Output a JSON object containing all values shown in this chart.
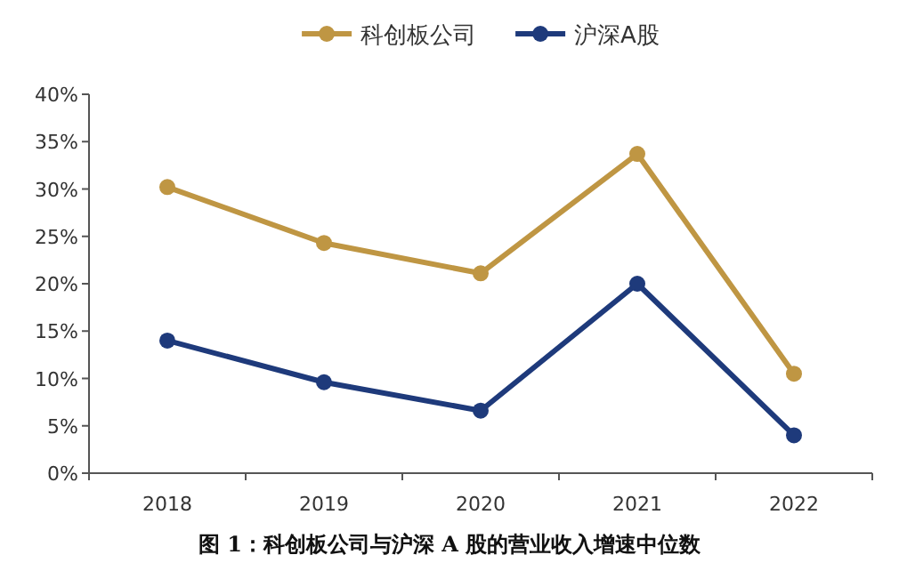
{
  "chart_data": {
    "type": "line",
    "title": "图 1：科创板公司与沪深 A 股的营业收入增速中位数",
    "categories": [
      "2018",
      "2019",
      "2020",
      "2021",
      "2022"
    ],
    "series": [
      {
        "name": "科创板公司",
        "color": "#bf9643",
        "values": [
          30.2,
          24.3,
          21.1,
          33.7,
          10.5
        ]
      },
      {
        "name": "沪深A股",
        "color": "#1e3a7b",
        "values": [
          14.0,
          9.6,
          6.6,
          20.0,
          4.0
        ]
      }
    ],
    "ylim": [
      0,
      40
    ],
    "yticks": [
      {
        "value": 0,
        "label": "0%"
      },
      {
        "value": 5,
        "label": "5%"
      },
      {
        "value": 10,
        "label": "10%"
      },
      {
        "value": 15,
        "label": "15%"
      },
      {
        "value": 20,
        "label": "20%"
      },
      {
        "value": 25,
        "label": "25%"
      },
      {
        "value": 30,
        "label": "30%"
      },
      {
        "value": 35,
        "label": "35%"
      },
      {
        "value": 40,
        "label": "40%"
      }
    ],
    "legend": "top",
    "marker": "circle",
    "line_style": "solid",
    "grid": false
  }
}
